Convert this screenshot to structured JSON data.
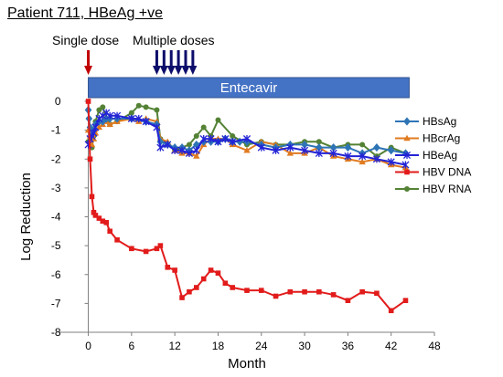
{
  "title": "Patient 711, HBeAg +ve",
  "chart_data": {
    "type": "line",
    "xlabel": "Month",
    "ylabel": "Log Reduction",
    "xlim": [
      -4,
      48
    ],
    "ylim": [
      -8,
      0
    ],
    "xticks": [
      0,
      6,
      12,
      18,
      24,
      30,
      36,
      42,
      48
    ],
    "yticks": [
      0,
      -1,
      -2,
      -3,
      -4,
      -5,
      -6,
      -7,
      -8
    ],
    "grid": false,
    "legend_position": "right",
    "annotations": {
      "single_dose_label": "Single dose",
      "multiple_doses_label": "Multiple doses",
      "single_dose_arrow_color": "#c00000",
      "multiple_doses_arrow_color": "#0d0d6b",
      "single_dose_month": 0,
      "multiple_dose_months": [
        9.5,
        10.5,
        11.5,
        12.5,
        13.5,
        14.5
      ],
      "treatment_bar": {
        "label": "Entecavir",
        "start_month": 0,
        "end_month": 44.5,
        "color": "#4472c4"
      }
    },
    "series": [
      {
        "name": "HBsAg",
        "color": "#2e75b6",
        "marker": "diamond",
        "x": [
          0,
          0.1,
          0.25,
          0.5,
          0.75,
          1,
          1.5,
          2,
          2.5,
          3,
          4,
          6,
          8,
          9.5,
          10,
          11,
          12,
          13,
          14,
          15,
          16,
          17,
          18,
          19,
          20,
          21,
          22,
          24,
          26,
          28,
          30,
          32,
          34,
          36,
          38,
          40,
          42,
          44
        ],
        "y": [
          -0.3,
          -0.6,
          -0.9,
          -1.1,
          -1.0,
          -0.8,
          -0.7,
          -0.7,
          -0.6,
          -0.6,
          -0.6,
          -0.6,
          -0.7,
          -0.8,
          -1.4,
          -1.5,
          -1.6,
          -1.6,
          -1.7,
          -1.5,
          -1.4,
          -1.4,
          -1.4,
          -1.3,
          -1.4,
          -1.4,
          -1.4,
          -1.5,
          -1.6,
          -1.5,
          -1.5,
          -1.6,
          -1.6,
          -1.6,
          -1.8,
          -1.6,
          -1.7,
          -1.8
        ]
      },
      {
        "name": "HBcrAg",
        "color": "#e07b20",
        "marker": "triangle",
        "x": [
          0,
          0.25,
          0.5,
          0.75,
          1,
          1.5,
          2,
          2.5,
          3,
          4,
          6,
          7,
          8,
          9.5,
          10,
          11,
          12,
          13,
          14,
          15,
          16,
          17,
          18,
          19,
          20,
          22,
          24,
          26,
          28,
          30,
          32,
          34,
          36,
          38,
          40,
          42,
          44
        ],
        "y": [
          -1.0,
          -1.2,
          -1.5,
          -1.3,
          -1.1,
          -0.9,
          -0.8,
          -0.7,
          -0.8,
          -0.7,
          -0.6,
          -0.7,
          -0.6,
          -0.7,
          -1.3,
          -1.4,
          -1.7,
          -1.8,
          -1.8,
          -1.9,
          -1.5,
          -1.3,
          -1.3,
          -1.3,
          -1.5,
          -1.7,
          -1.4,
          -1.5,
          -1.8,
          -1.8,
          -1.6,
          -1.9,
          -2.0,
          -2.1,
          -2.0,
          -2.2,
          -2.3
        ]
      },
      {
        "name": "HBeAg",
        "color": "#2323d6",
        "marker": "asterisk",
        "x": [
          0,
          0.25,
          0.5,
          0.75,
          1,
          1.5,
          2,
          2.5,
          3,
          4,
          6,
          7,
          8,
          9.5,
          10,
          11,
          12,
          13,
          14,
          15,
          16,
          17,
          18,
          19,
          20,
          22,
          24,
          26,
          28,
          30,
          32,
          34,
          36,
          38,
          40,
          42,
          44
        ],
        "y": [
          -1.5,
          -1.3,
          -1.2,
          -1.1,
          -0.9,
          -0.6,
          -0.5,
          -0.4,
          -0.5,
          -0.5,
          -0.6,
          -0.6,
          -0.7,
          -0.9,
          -1.6,
          -1.5,
          -1.7,
          -1.7,
          -1.8,
          -1.7,
          -1.3,
          -1.3,
          -1.4,
          -1.3,
          -1.4,
          -1.3,
          -1.6,
          -1.7,
          -1.6,
          -1.7,
          -1.8,
          -1.8,
          -1.9,
          -1.9,
          -2.0,
          -2.1,
          -2.2
        ]
      },
      {
        "name": "HBV DNA",
        "color": "#e21b1b",
        "marker": "square",
        "x": [
          0,
          0.25,
          0.5,
          0.75,
          1,
          1.5,
          2,
          2.5,
          3,
          4,
          6,
          8,
          9.5,
          10,
          11,
          12,
          13,
          14,
          15,
          16,
          17,
          18,
          19,
          20,
          22,
          24,
          26,
          28,
          30,
          32,
          34,
          36,
          38,
          40,
          42,
          44
        ],
        "y": [
          0,
          -2.0,
          -3.3,
          -3.85,
          -3.95,
          -4.05,
          -4.15,
          -4.2,
          -4.5,
          -4.8,
          -5.1,
          -5.2,
          -5.1,
          -5.0,
          -5.75,
          -5.85,
          -6.8,
          -6.6,
          -6.45,
          -6.15,
          -5.85,
          -5.95,
          -6.3,
          -6.45,
          -6.55,
          -6.55,
          -6.75,
          -6.6,
          -6.6,
          -6.6,
          -6.7,
          -6.9,
          -6.6,
          -6.65,
          -7.25,
          -6.9
        ]
      },
      {
        "name": "HBV RNA",
        "color": "#548235",
        "marker": "circle",
        "x": [
          0,
          0.25,
          0.5,
          0.75,
          1,
          1.5,
          2,
          2.5,
          3,
          4,
          6,
          7,
          8,
          9.5,
          10,
          11,
          12,
          13,
          14,
          15,
          16,
          17,
          18,
          20,
          22,
          24,
          26,
          28,
          30,
          32,
          34,
          36,
          38,
          40,
          42,
          44
        ],
        "y": [
          -1.4,
          -1.5,
          -1.6,
          -1.2,
          -0.7,
          -0.3,
          -0.2,
          -0.6,
          -0.8,
          -0.7,
          -0.4,
          -0.15,
          -0.2,
          -0.3,
          -1.3,
          -1.5,
          -1.7,
          -1.6,
          -1.5,
          -1.2,
          -0.9,
          -1.2,
          -0.65,
          -1.2,
          -1.5,
          -1.4,
          -1.5,
          -1.5,
          -1.4,
          -1.4,
          -1.6,
          -1.5,
          -1.5,
          -1.9,
          -1.6,
          -1.8
        ]
      }
    ]
  }
}
